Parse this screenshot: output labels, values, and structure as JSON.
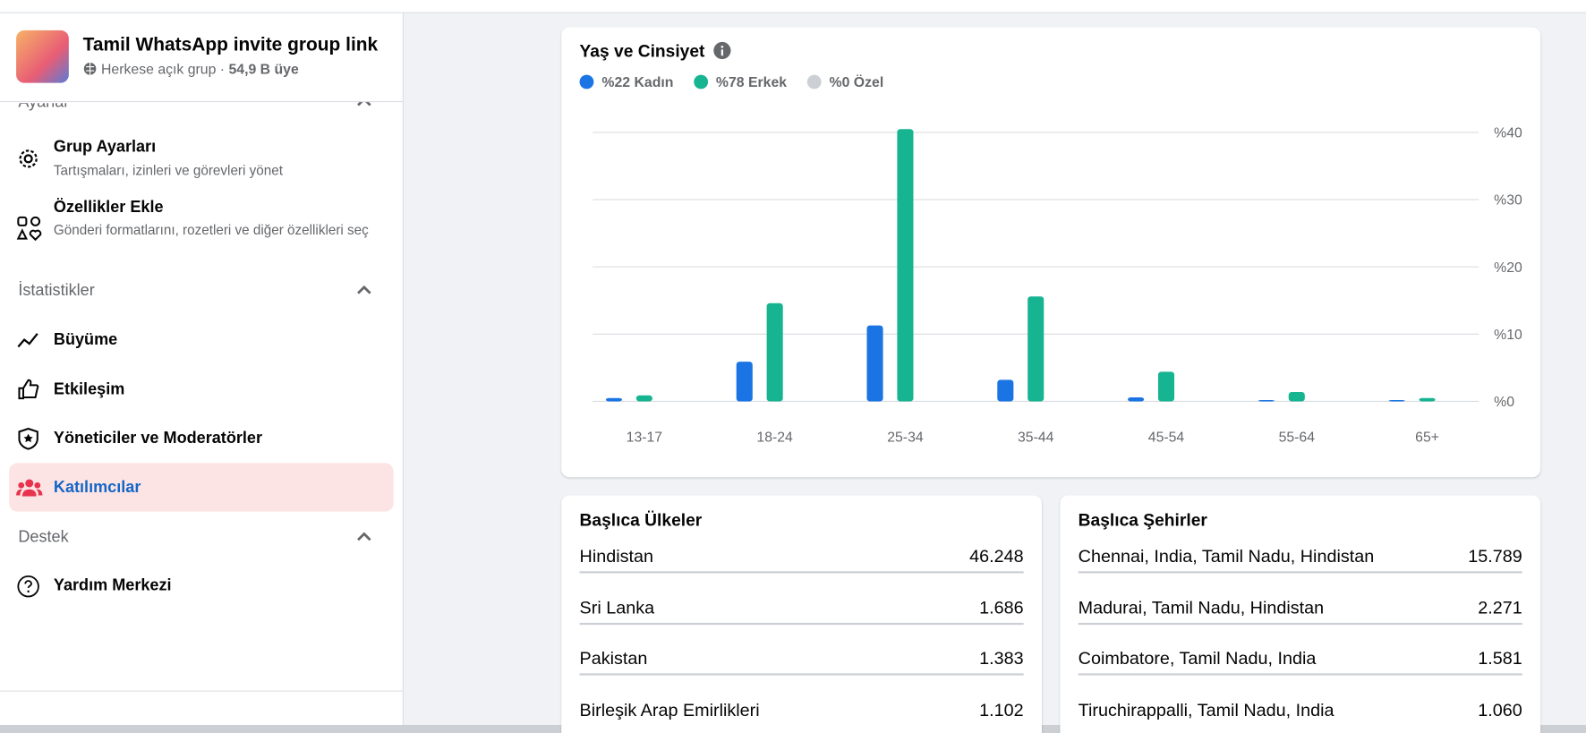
{
  "sidebar": {
    "group_name": "Tamil WhatsApp invite group link",
    "privacy": "Herkese açık grup ·",
    "members": "54,9 B üye",
    "settings_header": "Ayarlar",
    "group_settings": "Grup Ayarları",
    "group_settings_desc": "Tartışmaları, izinleri ve görevleri yönet",
    "add_features": "Özellikler Ekle",
    "add_features_desc": "Gönderi formatlarını, rozetleri ve diğer özellikleri seç",
    "insights_header": "İstatistikler",
    "growth": "Büyüme",
    "engagement": "Etkileşim",
    "admins": "Yöneticiler ve Moderatörler",
    "members_item": "Katılımcılar",
    "support_header": "Destek",
    "help_center": "Yardım Merkezi"
  },
  "chart_data": {
    "type": "bar",
    "title": "Yaş ve Cinsiyet",
    "categories": [
      "13-17",
      "18-24",
      "25-34",
      "35-44",
      "45-54",
      "55-64",
      "65+"
    ],
    "series": [
      {
        "name": "%22 Kadın",
        "color": "#1b74e4",
        "values": [
          0.5,
          5.9,
          11.3,
          3.2,
          0.6,
          0.2,
          0.2
        ]
      },
      {
        "name": "%78 Erkek",
        "color": "#17b491",
        "values": [
          0.9,
          14.6,
          40.5,
          15.6,
          4.4,
          1.4,
          0.5
        ]
      },
      {
        "name": "%0 Özel",
        "color": "#ccd0d5",
        "values": [
          0,
          0,
          0,
          0,
          0,
          0,
          0
        ]
      }
    ],
    "ylim": [
      0,
      40
    ],
    "yticks": [
      {
        "value": 0,
        "label": "%0"
      },
      {
        "value": 10,
        "label": "%10"
      },
      {
        "value": 20,
        "label": "%20"
      },
      {
        "value": 30,
        "label": "%30"
      },
      {
        "value": 40,
        "label": "%40"
      }
    ],
    "grid": true
  },
  "countries": {
    "title": "Başlıca Ülkeler",
    "rows": [
      {
        "name": "Hindistan",
        "value": "46.248"
      },
      {
        "name": "Sri Lanka",
        "value": "1.686"
      },
      {
        "name": "Pakistan",
        "value": "1.383"
      },
      {
        "name": "Birleşik Arap Emirlikleri",
        "value": "1.102"
      }
    ]
  },
  "cities": {
    "title": "Başlıca Şehirler",
    "rows": [
      {
        "name": "Chennai, India, Tamil Nadu, Hindistan",
        "value": "15.789"
      },
      {
        "name": "Madurai, Tamil Nadu, Hindistan",
        "value": "2.271"
      },
      {
        "name": "Coimbatore, Tamil Nadu, India",
        "value": "1.581"
      },
      {
        "name": "Tiruchirappalli, Tamil Nadu, India",
        "value": "1.060"
      }
    ]
  }
}
